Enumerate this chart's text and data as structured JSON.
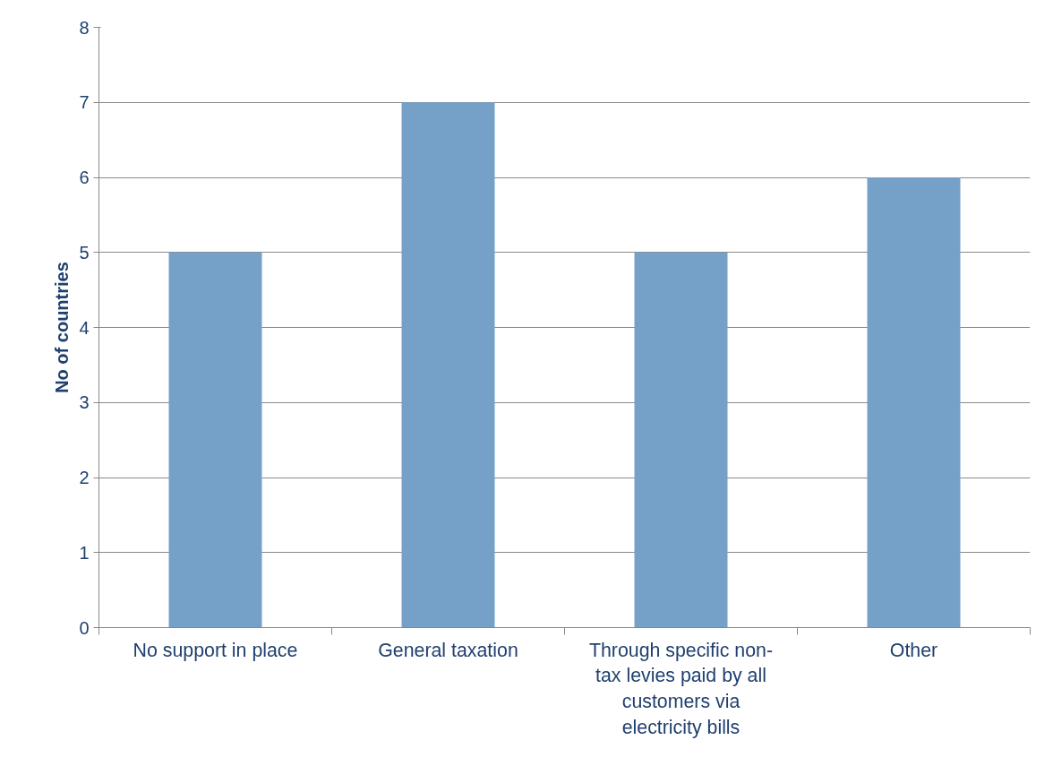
{
  "chart_data": {
    "type": "bar",
    "ylabel": "No of countries",
    "categories": [
      "No support in place",
      "General taxation",
      "Through specific non-tax levies paid by all customers via electricity bills",
      "Other"
    ],
    "values": [
      5,
      7,
      5,
      6
    ],
    "color": "#75a1c9",
    "ylim": [
      0,
      8
    ],
    "yticks": [
      0,
      1,
      2,
      3,
      4,
      5,
      6,
      7,
      8
    ],
    "grid": "y"
  }
}
